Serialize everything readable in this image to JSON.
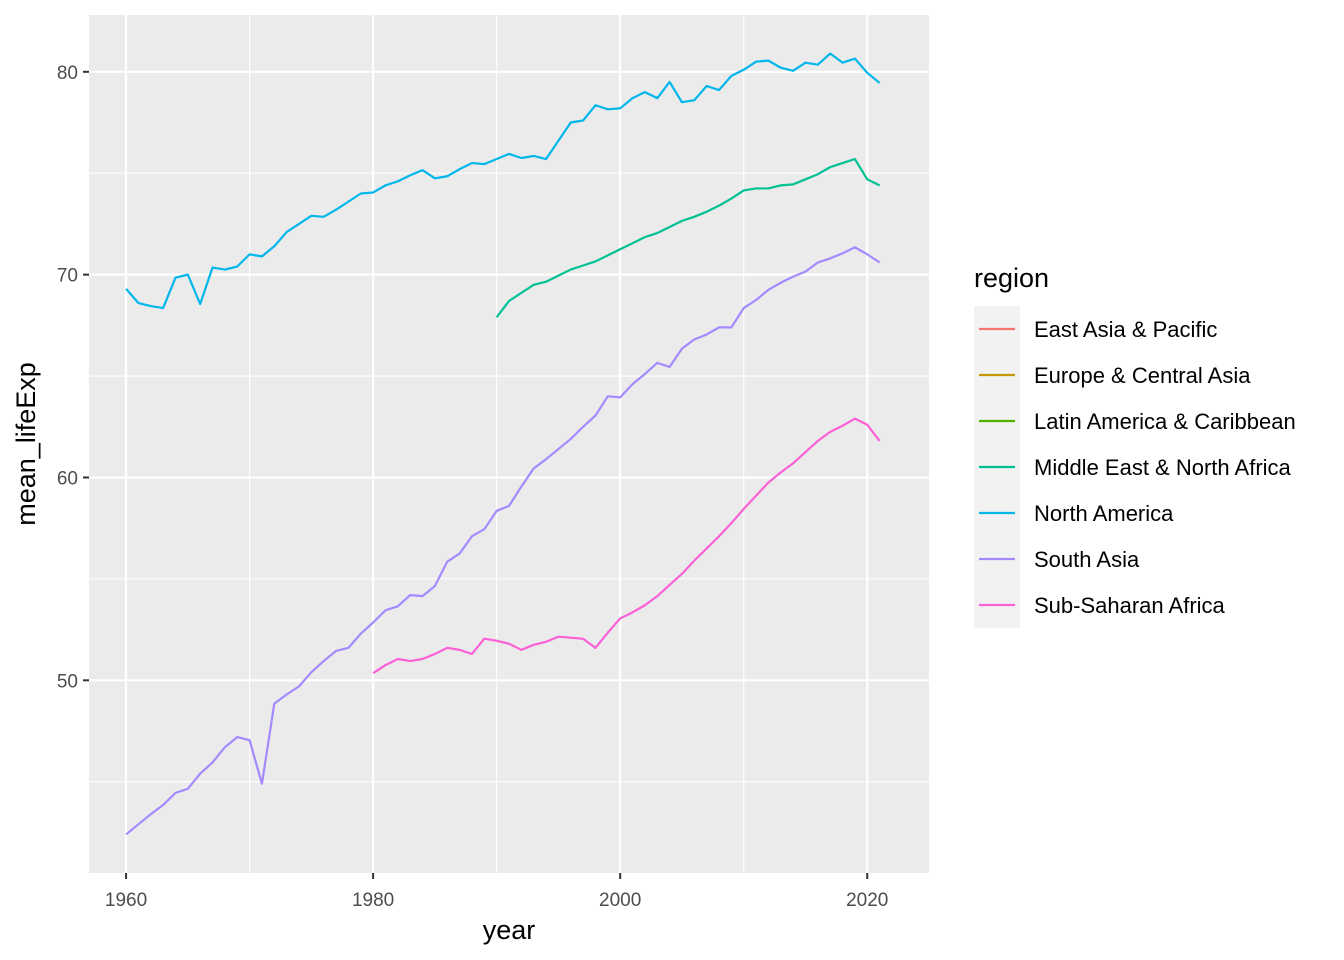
{
  "chart_data": {
    "type": "line",
    "title": "",
    "xlabel": "year",
    "ylabel": "mean_lifeExp",
    "xlim": [
      1957,
      2025
    ],
    "ylim": [
      40.5,
      82.8
    ],
    "x_ticks": [
      1960,
      1980,
      2000,
      2020
    ],
    "y_ticks": [
      50,
      60,
      70,
      80
    ],
    "grid": true,
    "legend": {
      "title": "region",
      "placement": "right"
    },
    "series": [
      {
        "name": "East Asia & Pacific",
        "color": "#F8766D",
        "x": [],
        "values": []
      },
      {
        "name": "Europe & Central Asia",
        "color": "#C49A00",
        "x": [],
        "values": []
      },
      {
        "name": "Latin America & Caribbean",
        "color": "#53B400",
        "x": [],
        "values": []
      },
      {
        "name": "Middle East & North Africa",
        "color": "#00C094",
        "x": [
          1990,
          1991,
          1992,
          1993,
          1994,
          1995,
          1996,
          1997,
          1998,
          1999,
          2000,
          2001,
          2002,
          2003,
          2004,
          2005,
          2006,
          2007,
          2008,
          2009,
          2010,
          2011,
          2012,
          2013,
          2014,
          2015,
          2016,
          2017,
          2018,
          2019,
          2020,
          2021
        ],
        "values": [
          67.9,
          68.7,
          69.1,
          69.5,
          69.65,
          69.95,
          70.25,
          70.45,
          70.65,
          70.95,
          71.25,
          71.55,
          71.85,
          72.05,
          72.35,
          72.65,
          72.85,
          73.1,
          73.4,
          73.75,
          74.15,
          74.25,
          74.25,
          74.4,
          74.45,
          74.7,
          74.95,
          75.3,
          75.5,
          75.7,
          74.7,
          74.4
        ]
      },
      {
        "name": "North America",
        "color": "#00B6EB",
        "x": [
          1960,
          1961,
          1962,
          1963,
          1964,
          1965,
          1966,
          1967,
          1968,
          1969,
          1970,
          1971,
          1972,
          1973,
          1974,
          1975,
          1976,
          1977,
          1978,
          1979,
          1980,
          1981,
          1982,
          1983,
          1984,
          1985,
          1986,
          1987,
          1988,
          1989,
          1990,
          1991,
          1992,
          1993,
          1994,
          1995,
          1996,
          1997,
          1998,
          1999,
          2000,
          2001,
          2002,
          2003,
          2004,
          2005,
          2006,
          2007,
          2008,
          2009,
          2010,
          2011,
          2012,
          2013,
          2014,
          2015,
          2016,
          2017,
          2018,
          2019,
          2020,
          2021
        ],
        "values": [
          69.3,
          68.6,
          68.45,
          68.35,
          69.85,
          70.0,
          68.55,
          70.35,
          70.25,
          70.4,
          71.0,
          70.9,
          71.4,
          72.1,
          72.5,
          72.9,
          72.85,
          73.2,
          73.6,
          74.0,
          74.05,
          74.4,
          74.6,
          74.9,
          75.15,
          74.75,
          74.85,
          75.2,
          75.5,
          75.45,
          75.7,
          75.95,
          75.75,
          75.85,
          75.7,
          76.6,
          77.5,
          77.6,
          78.35,
          78.15,
          78.2,
          78.7,
          79.0,
          78.7,
          79.5,
          78.5,
          78.6,
          79.3,
          79.1,
          79.8,
          80.1,
          80.5,
          80.55,
          80.2,
          80.05,
          80.45,
          80.35,
          80.9,
          80.45,
          80.65,
          79.95,
          79.45
        ]
      },
      {
        "name": "South Asia",
        "color": "#A58AFF",
        "x": [
          1960,
          1961,
          1962,
          1963,
          1964,
          1965,
          1966,
          1967,
          1968,
          1969,
          1970,
          1971,
          1972,
          1973,
          1974,
          1975,
          1976,
          1977,
          1978,
          1979,
          1980,
          1981,
          1982,
          1983,
          1984,
          1985,
          1986,
          1987,
          1988,
          1989,
          1990,
          1991,
          1992,
          1993,
          1994,
          1995,
          1996,
          1997,
          1998,
          1999,
          2000,
          2001,
          2002,
          2003,
          2004,
          2005,
          2006,
          2007,
          2008,
          2009,
          2010,
          2011,
          2012,
          2013,
          2014,
          2015,
          2016,
          2017,
          2018,
          2019,
          2020,
          2021
        ],
        "values": [
          42.4,
          42.9,
          43.4,
          43.85,
          44.45,
          44.65,
          45.4,
          45.95,
          46.7,
          47.2,
          47.05,
          44.9,
          48.85,
          49.3,
          49.7,
          50.4,
          50.95,
          51.45,
          51.6,
          52.3,
          52.85,
          53.45,
          53.65,
          54.2,
          54.15,
          54.65,
          55.85,
          56.25,
          57.1,
          57.45,
          58.35,
          58.6,
          59.55,
          60.45,
          60.9,
          61.4,
          61.9,
          62.5,
          63.05,
          64.0,
          63.95,
          64.6,
          65.1,
          65.65,
          65.45,
          66.35,
          66.8,
          67.05,
          67.4,
          67.4,
          68.35,
          68.75,
          69.25,
          69.6,
          69.9,
          70.15,
          70.6,
          70.8,
          71.05,
          71.35,
          71.0,
          70.6
        ]
      },
      {
        "name": "Sub-Saharan Africa",
        "color": "#FB61D7",
        "x": [
          1980,
          1981,
          1982,
          1983,
          1984,
          1985,
          1986,
          1987,
          1988,
          1989,
          1990,
          1991,
          1992,
          1993,
          1994,
          1995,
          1996,
          1997,
          1998,
          1999,
          2000,
          2001,
          2002,
          2003,
          2004,
          2005,
          2006,
          2007,
          2008,
          2009,
          2010,
          2011,
          2012,
          2013,
          2014,
          2015,
          2016,
          2017,
          2018,
          2019,
          2020,
          2021
        ],
        "values": [
          50.35,
          50.75,
          51.05,
          50.95,
          51.05,
          51.3,
          51.6,
          51.5,
          51.3,
          52.05,
          51.95,
          51.8,
          51.5,
          51.75,
          51.9,
          52.15,
          52.1,
          52.05,
          51.6,
          52.35,
          53.05,
          53.35,
          53.7,
          54.15,
          54.7,
          55.25,
          55.9,
          56.5,
          57.1,
          57.75,
          58.45,
          59.1,
          59.75,
          60.25,
          60.7,
          61.25,
          61.8,
          62.25,
          62.55,
          62.9,
          62.6,
          61.8
        ]
      }
    ]
  }
}
